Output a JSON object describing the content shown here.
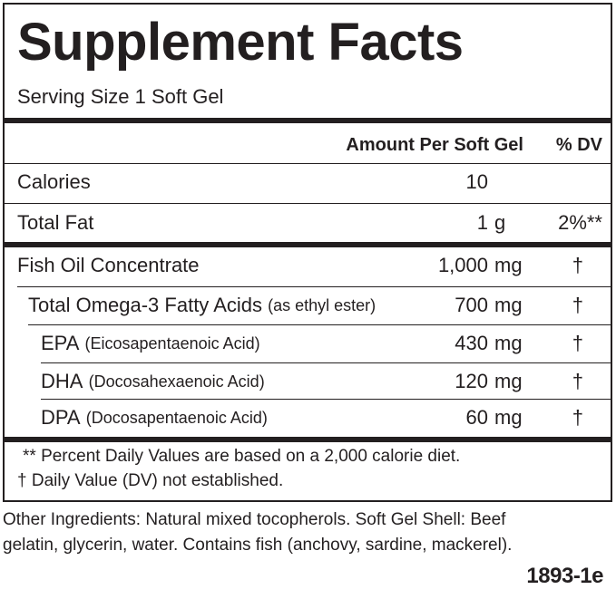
{
  "title": "Supplement Facts",
  "serving_size": "Serving Size 1 Soft Gel",
  "header": {
    "amount": "Amount Per Soft Gel",
    "dv": "% DV"
  },
  "rows": [
    {
      "name": "Calories",
      "qualifier": "",
      "amount": "10",
      "unit": "",
      "dv": ""
    },
    {
      "name": "Total Fat",
      "qualifier": "",
      "amount": "1",
      "unit": "g",
      "dv": "2%**"
    },
    {
      "name": "Fish Oil Concentrate",
      "qualifier": "",
      "amount": "1,000",
      "unit": "mg",
      "dv": "†"
    },
    {
      "name": "Total Omega-3 Fatty Acids",
      "qualifier": "(as ethyl ester)",
      "amount": "700",
      "unit": "mg",
      "dv": "†"
    },
    {
      "name": "EPA",
      "qualifier": "(Eicosapentaenoic Acid)",
      "amount": "430",
      "unit": "mg",
      "dv": "†"
    },
    {
      "name": "DHA",
      "qualifier": "(Docosahexaenoic Acid)",
      "amount": "120",
      "unit": "mg",
      "dv": "†"
    },
    {
      "name": "DPA",
      "qualifier": "(Docosapentaenoic Acid)",
      "amount": "60",
      "unit": "mg",
      "dv": "†"
    }
  ],
  "footnotes": [
    "** Percent Daily Values are based on a 2,000 calorie diet.",
    "† Daily Value (DV) not established."
  ],
  "other_ingredients": [
    "Other Ingredients: Natural mixed tocopherols. Soft Gel Shell: Beef",
    "gelatin, glycerin, water.  Contains fish (anchovy, sardine, mackerel)."
  ],
  "code": "1893-1e"
}
